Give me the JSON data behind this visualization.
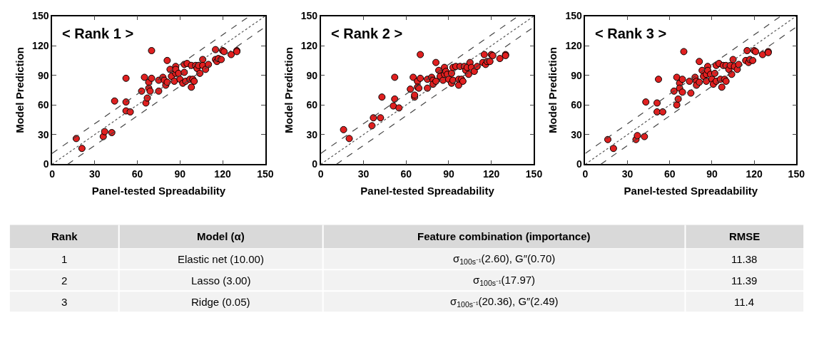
{
  "chart_data": [
    {
      "type": "scatter",
      "xlabel": "Panel-tested Spreadability",
      "ylabel": "Model Prediction",
      "annotations": [
        "< Rank 1 >"
      ],
      "xlim": [
        0,
        150
      ],
      "ylim": [
        0,
        150
      ],
      "xticks": [
        0,
        30,
        60,
        90,
        120,
        150
      ],
      "yticks": [
        0,
        30,
        60,
        90,
        120,
        150
      ],
      "marker": "circle",
      "series": [
        {
          "color": "#e02020",
          "x": [
            17,
            21,
            36,
            37,
            42,
            44,
            52,
            52,
            52,
            55,
            63,
            65,
            66,
            67,
            68,
            68,
            70,
            69,
            70,
            75,
            75,
            81,
            78,
            79,
            80,
            81,
            83,
            84,
            86,
            87,
            87,
            87,
            89,
            90,
            92,
            93,
            93,
            94,
            95,
            97,
            98,
            98,
            99,
            101,
            100,
            102,
            103,
            104,
            106,
            106,
            108,
            110,
            115,
            115,
            116,
            117,
            119,
            120,
            121,
            126,
            130,
            130
          ],
          "values": [
            26,
            16,
            28,
            33,
            32,
            64,
            87,
            63,
            54,
            53,
            74,
            88,
            62,
            67,
            83,
            77,
            87,
            74,
            115,
            85,
            74,
            105,
            88,
            85,
            80,
            83,
            96,
            89,
            84,
            92,
            99,
            96,
            92,
            86,
            82,
            93,
            101,
            84,
            102,
            86,
            78,
            100,
            86,
            100,
            84,
            97,
            100,
            92,
            106,
            100,
            96,
            101,
            116,
            106,
            104,
            107,
            106,
            115,
            114,
            111,
            115,
            114
          ]
        },
        {
          "type": "line",
          "color": "#444444",
          "line_style": "dashed",
          "marker": "none",
          "x": [
            0,
            139
          ],
          "values": [
            11,
            150
          ]
        },
        {
          "type": "line",
          "color": "#555555",
          "line_style": "dotted",
          "marker": "none",
          "x": [
            0,
            150
          ],
          "values": [
            0,
            150
          ]
        },
        {
          "type": "line",
          "color": "#444444",
          "line_style": "dashed",
          "marker": "none",
          "x": [
            11,
            150
          ],
          "values": [
            0,
            139
          ]
        }
      ]
    },
    {
      "type": "scatter",
      "xlabel": "Panel-tested Spreadability",
      "ylabel": "Model Prediction",
      "annotations": [
        "< Rank 2 >"
      ],
      "xlim": [
        0,
        150
      ],
      "ylim": [
        0,
        150
      ],
      "xticks": [
        0,
        30,
        60,
        90,
        120,
        150
      ],
      "yticks": [
        0,
        30,
        60,
        90,
        120,
        150
      ],
      "marker": "circle",
      "series": [
        {
          "color": "#e02020",
          "x": [
            16,
            20,
            36,
            37,
            42,
            43,
            52,
            52,
            51,
            55,
            63,
            65,
            66,
            66,
            68,
            68,
            70,
            69,
            70,
            75,
            75,
            81,
            78,
            79,
            79,
            81,
            83,
            84,
            86,
            87,
            87,
            88,
            89,
            90,
            92,
            92,
            93,
            93,
            95,
            97,
            97,
            98,
            99,
            101,
            100,
            102,
            103,
            104,
            105,
            106,
            108,
            110,
            115,
            114,
            116,
            117,
            119,
            120,
            121,
            126,
            130,
            130
          ],
          "values": [
            35,
            26,
            39,
            47,
            47,
            68,
            88,
            66,
            59,
            57,
            76,
            88,
            68,
            70,
            84,
            78,
            87,
            77,
            111,
            86,
            77,
            103,
            88,
            85,
            81,
            84,
            95,
            89,
            85,
            91,
            98,
            94,
            91,
            86,
            82,
            92,
            98,
            85,
            99,
            86,
            80,
            99,
            86,
            99,
            84,
            95,
            98,
            91,
            103,
            98,
            94,
            99,
            111,
            103,
            101,
            104,
            104,
            111,
            110,
            107,
            111,
            110
          ]
        },
        {
          "type": "line",
          "color": "#444444",
          "line_style": "dashed",
          "marker": "none",
          "x": [
            0,
            139
          ],
          "values": [
            11,
            150
          ]
        },
        {
          "type": "line",
          "color": "#555555",
          "line_style": "dotted",
          "marker": "none",
          "x": [
            0,
            150
          ],
          "values": [
            0,
            150
          ]
        },
        {
          "type": "line",
          "color": "#444444",
          "line_style": "dashed",
          "marker": "none",
          "x": [
            11,
            150
          ],
          "values": [
            0,
            139
          ]
        }
      ]
    },
    {
      "type": "scatter",
      "xlabel": "Panel-tested Spreadability",
      "ylabel": "Model Prediction",
      "annotations": [
        "< Rank 3 >"
      ],
      "xlim": [
        0,
        150
      ],
      "ylim": [
        0,
        150
      ],
      "xticks": [
        0,
        30,
        60,
        90,
        120,
        150
      ],
      "yticks": [
        0,
        30,
        60,
        90,
        120,
        150
      ],
      "marker": "circle",
      "series": [
        {
          "color": "#e02020",
          "x": [
            16,
            20,
            36,
            37,
            42,
            43,
            52,
            51,
            51,
            55,
            63,
            65,
            65,
            66,
            67,
            67,
            69,
            69,
            70,
            74,
            75,
            81,
            78,
            79,
            79,
            81,
            83,
            84,
            86,
            86,
            87,
            87,
            89,
            90,
            91,
            92,
            93,
            93,
            95,
            96,
            97,
            98,
            99,
            100,
            100,
            102,
            103,
            104,
            105,
            106,
            108,
            109,
            115,
            114,
            116,
            117,
            119,
            120,
            121,
            126,
            130,
            130
          ],
          "values": [
            25,
            16,
            25,
            29,
            28,
            63,
            86,
            62,
            53,
            53,
            74,
            88,
            60,
            66,
            82,
            77,
            86,
            73,
            114,
            84,
            72,
            104,
            88,
            84,
            80,
            83,
            95,
            89,
            84,
            91,
            99,
            95,
            91,
            86,
            81,
            92,
            100,
            84,
            102,
            86,
            78,
            100,
            86,
            100,
            84,
            96,
            100,
            91,
            106,
            99,
            96,
            101,
            115,
            105,
            103,
            106,
            105,
            115,
            114,
            111,
            114,
            113
          ]
        },
        {
          "type": "line",
          "color": "#444444",
          "line_style": "dashed",
          "marker": "none",
          "x": [
            0,
            139
          ],
          "values": [
            11,
            150
          ]
        },
        {
          "type": "line",
          "color": "#555555",
          "line_style": "dotted",
          "marker": "none",
          "x": [
            0,
            150
          ],
          "values": [
            0,
            150
          ]
        },
        {
          "type": "line",
          "color": "#444444",
          "line_style": "dashed",
          "marker": "none",
          "x": [
            11,
            150
          ],
          "values": [
            0,
            139
          ]
        }
      ]
    },
    {
      "type": "other",
      "categories": [
        "Rank",
        "Model (α)",
        "Feature combination (importance)",
        "RMSE"
      ],
      "annotations": [
        "1",
        "Elastic net (10.00)",
        "σ$_{100s⁻¹}$(2.60), G″(0.70)",
        "11.38",
        "2",
        "Lasso (3.00)",
        "σ$_{100s⁻¹}$(17.97)",
        "11.39",
        "3",
        "Ridge (0.05)",
        "σ$_{100s⁻¹}$(20.36), G″(2.49)",
        "11.4"
      ]
    }
  ]
}
